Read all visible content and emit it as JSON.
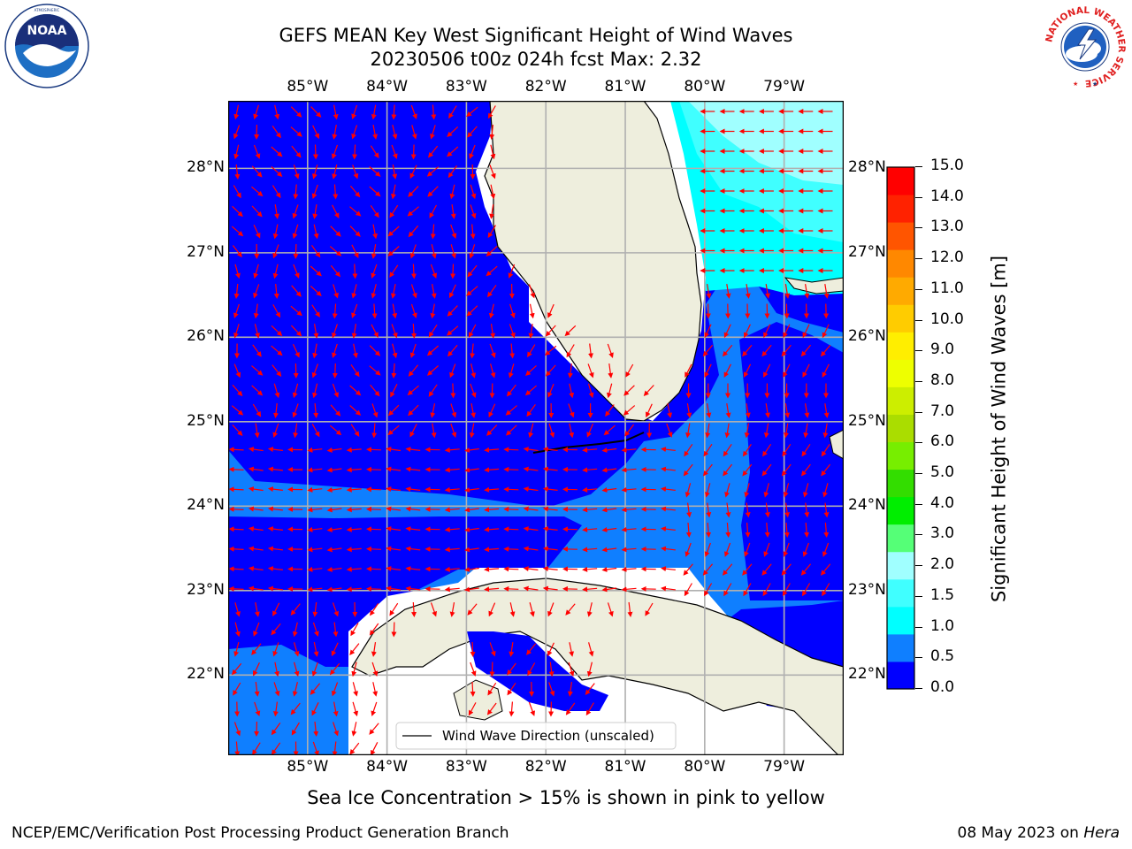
{
  "title": {
    "line1": "GEFS MEAN Key West Significant Height of Wind Waves",
    "line2": "20230506 t00z 024h fcst   Max: 2.32"
  },
  "logos": {
    "left": "NOAA",
    "left_ring": "NATIONAL OCEANIC AND ATMOSPHERIC ADMINISTRATION · U.S. DEPARTMENT OF COMMERCE",
    "right_ring": "NATIONAL WEATHER SERVICE"
  },
  "map": {
    "lon_labels": [
      "85°W",
      "84°W",
      "83°W",
      "82°W",
      "81°W",
      "80°W",
      "79°W"
    ],
    "lat_labels": [
      "28°N",
      "27°N",
      "26°N",
      "25°N",
      "24°N",
      "23°N",
      "22°N"
    ],
    "lon_range": [
      -86.0,
      -78.25
    ],
    "lat_range": [
      21.05,
      28.8
    ],
    "legend_label": "Wind Wave Direction (unscaled)",
    "arrow_color": "#ff0000",
    "land_color": "#eeeedd",
    "grid_color": "#b0b0b0"
  },
  "colorbar": {
    "ticks": [
      "15.0",
      "14.0",
      "13.0",
      "12.0",
      "11.0",
      "10.0",
      "9.0",
      "8.0",
      "7.0",
      "6.0",
      "5.0",
      "4.0",
      "3.0",
      "2.0",
      "1.5",
      "1.0",
      "0.5",
      "0.0"
    ],
    "colors": [
      "#0000ff",
      "#0f7fff",
      "#00ffff",
      "#40ffff",
      "#a0ffff",
      "#55ff77",
      "#00ee00",
      "#33dd00",
      "#77ee00",
      "#aadd00",
      "#ccee00",
      "#eeff00",
      "#ffee00",
      "#ffcc00",
      "#ffaa00",
      "#ff8800",
      "#ff5500",
      "#ff2200",
      "#ff0000"
    ],
    "label": "Significant Height of Wind Waves [m]"
  },
  "caption": "Sea Ice Concentration > 15% is shown in pink to yellow",
  "footer": {
    "left": "NCEP/EMC/Verification Post Processing Product Generation Branch",
    "right_date": "08 May 2023 on",
    "right_host": "Hera"
  }
}
